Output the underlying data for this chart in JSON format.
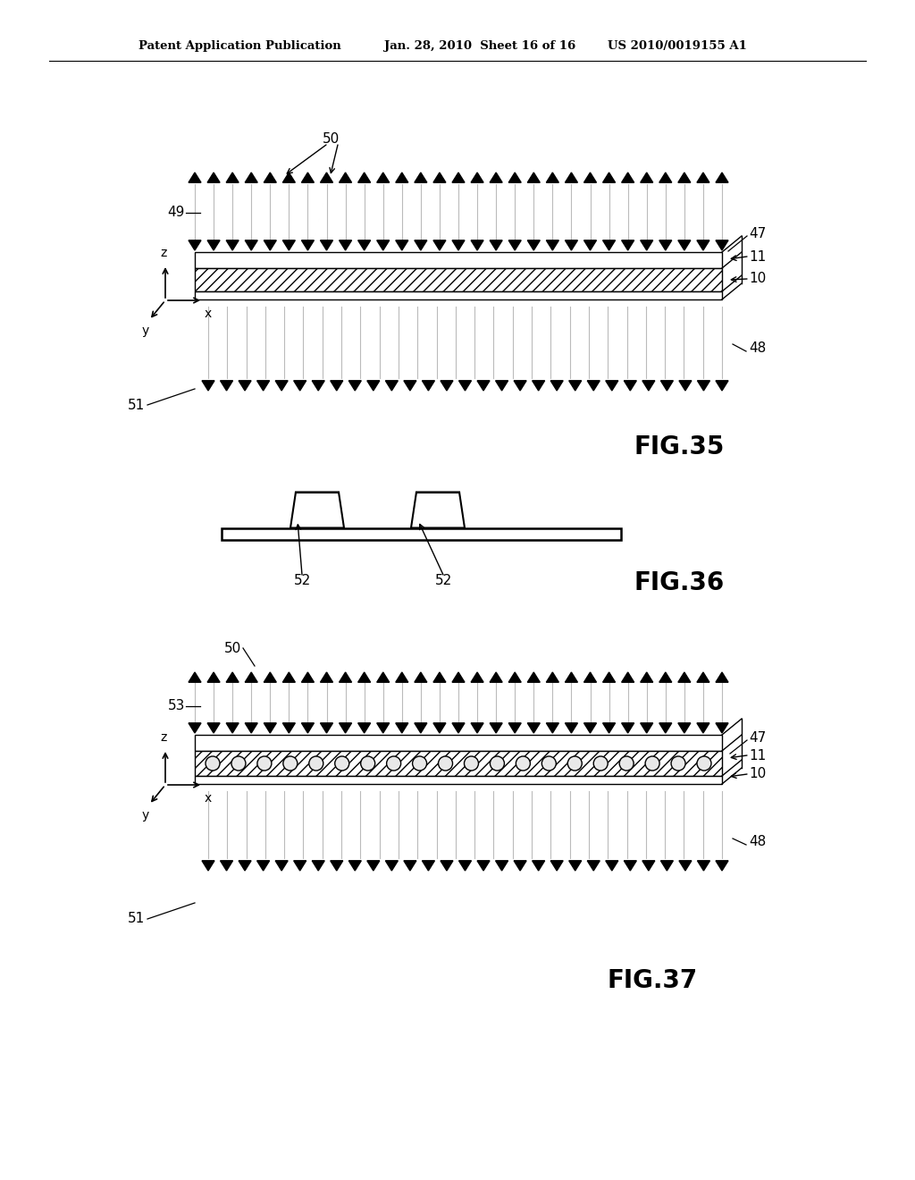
{
  "bg_color": "#ffffff",
  "header_left": "Patent Application Publication",
  "header_mid": "Jan. 28, 2010  Sheet 16 of 16",
  "header_right": "US 2010/0019155 A1",
  "fig35_label": "FIG.35",
  "fig36_label": "FIG.36",
  "fig37_label": "FIG.37",
  "tri_color": "#000000",
  "line_color": "#aaaaaa",
  "hatch_color": "#dddddd"
}
